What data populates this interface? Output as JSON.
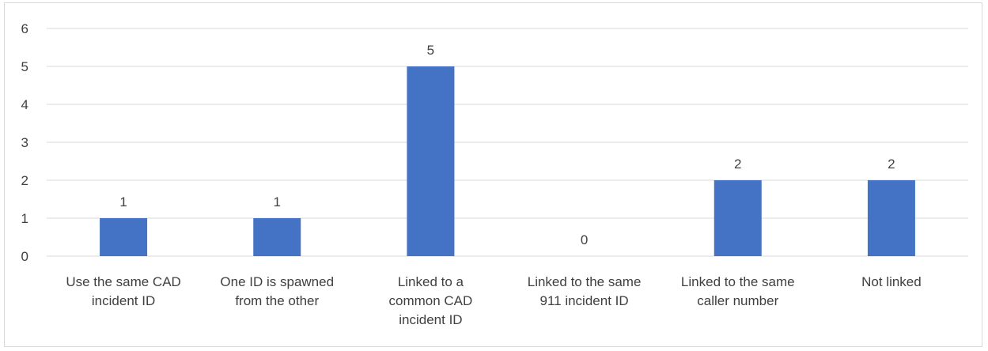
{
  "chart_data": {
    "type": "bar",
    "title": "",
    "xlabel": "",
    "ylabel": "",
    "categories": [
      [
        "Use the same CAD",
        "incident ID"
      ],
      [
        "One ID is spawned",
        "from the other"
      ],
      [
        "Linked to a",
        "common CAD",
        "incident ID"
      ],
      [
        "Linked to the same",
        "911 incident ID"
      ],
      [
        "Linked to the same",
        "caller number"
      ],
      [
        "Not linked"
      ]
    ],
    "values": [
      1,
      1,
      5,
      0,
      2,
      2
    ],
    "ylim": [
      0,
      6
    ],
    "yticks": [
      0,
      1,
      2,
      3,
      4,
      5,
      6
    ],
    "grid": true,
    "legend": "none",
    "bar_color": "#4472c4",
    "grid_color": "#d9d9d9",
    "data_labels": true
  }
}
